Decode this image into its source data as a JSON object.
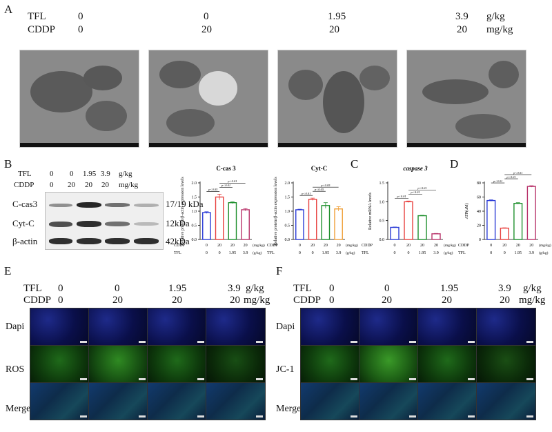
{
  "panelA": {
    "label": "A",
    "rows": [
      {
        "name": "TFL",
        "values": [
          "0",
          "0",
          "1.95",
          "3.9"
        ],
        "unit": "g/kg"
      },
      {
        "name": "CDDP",
        "values": [
          "0",
          "20",
          "20",
          "20"
        ],
        "unit": "mg/kg"
      }
    ]
  },
  "panelB": {
    "label": "B",
    "rows": [
      {
        "name": "TFL",
        "values": [
          "0",
          "0",
          "1.95",
          "3.9"
        ],
        "unit": "g/kg"
      },
      {
        "name": "CDDP",
        "values": [
          "0",
          "20",
          "20",
          "20"
        ],
        "unit": "mg/kg"
      }
    ],
    "bands": [
      {
        "name": "C-cas3",
        "size": "17/19 kDa"
      },
      {
        "name": "Cyt-C",
        "size": "12kDa"
      },
      {
        "name": "β-actin",
        "size": "42kDa"
      }
    ]
  },
  "panelC": {
    "label": "C"
  },
  "panelD": {
    "label": "D"
  },
  "panelE": {
    "label": "E",
    "rows": [
      {
        "name": "TFL",
        "values": [
          "0",
          "0",
          "1.95",
          "3.9"
        ],
        "unit": "g/kg"
      },
      {
        "name": "CDDP",
        "values": [
          "0",
          "20",
          "20",
          "20"
        ],
        "unit": "mg/kg"
      }
    ],
    "stains": [
      "Dapi",
      "ROS",
      "Merge"
    ]
  },
  "panelF": {
    "label": "F",
    "rows": [
      {
        "name": "TFL",
        "values": [
          "0",
          "0",
          "1.95",
          "3.9"
        ],
        "unit": "g/kg"
      },
      {
        "name": "CDDP",
        "values": [
          "0",
          "20",
          "20",
          "20"
        ],
        "unit": "mg/kg"
      }
    ],
    "stains": [
      "Dapi",
      "JC-1",
      "Merge"
    ]
  },
  "chart_data": [
    {
      "type": "bar",
      "title": "C-cas 3",
      "ylabel": "Relative protein/β-actin expression levels",
      "ylim": [
        0,
        2.0
      ],
      "yticks": [
        "0.0",
        "0.5",
        "1.0",
        "1.5",
        "2.0"
      ],
      "categories": [
        "0/0",
        "20/0",
        "20/1.95",
        "20/3.9"
      ],
      "cddp": [
        "0",
        "20",
        "20",
        "20"
      ],
      "tfl": [
        "0",
        "0",
        "1.95",
        "3.9"
      ],
      "cddp_unit": "(mg/kg)",
      "tfl_unit": "(g/kg)",
      "values": [
        0.95,
        1.5,
        1.3,
        1.05
      ],
      "errors": [
        0.03,
        0.1,
        0.03,
        0.04
      ],
      "colors": [
        "#2a3bd6",
        "#e8413f",
        "#1d8f2c",
        "#b8336a"
      ],
      "sig": [
        "p<0.05",
        "p<0.01",
        "p<0.01"
      ]
    },
    {
      "type": "bar",
      "title": "Cyt-C",
      "ylabel": "Relative protein/β-actin expression levels",
      "ylim": [
        0,
        2.0
      ],
      "yticks": [
        "0.0",
        "0.5",
        "1.0",
        "1.5",
        "2.0"
      ],
      "categories": [
        "0/0",
        "20/0",
        "20/1.95",
        "20/3.9"
      ],
      "cddp": [
        "0",
        "20",
        "20",
        "20"
      ],
      "tfl": [
        "0",
        "0",
        "1.95",
        "3.9"
      ],
      "cddp_unit": "(mg/kg)",
      "tfl_unit": "(g/kg)",
      "values": [
        1.05,
        1.42,
        1.2,
        1.08
      ],
      "errors": [
        0.02,
        0.04,
        0.1,
        0.08
      ],
      "colors": [
        "#2a3bd6",
        "#e8413f",
        "#1d8f2c",
        "#f0a038"
      ],
      "sig": [
        "p<0.01",
        "p<0.05",
        "p<0.05"
      ]
    },
    {
      "type": "bar",
      "title": "caspase 3",
      "ylabel": "Relative mRNA levels",
      "ylim": [
        0,
        1.5
      ],
      "yticks": [
        "0.0",
        "0.5",
        "1.0",
        "1.5"
      ],
      "categories": [
        "0/0",
        "20/0",
        "20/1.95",
        "20/3.9"
      ],
      "cddp": [
        "0",
        "20",
        "20",
        "20"
      ],
      "tfl": [
        "0",
        "0",
        "1.95",
        "3.9"
      ],
      "cddp_unit": "(mg/kg)",
      "tfl_unit": "(g/kg)",
      "values": [
        0.32,
        1.0,
        0.63,
        0.15
      ],
      "errors": [
        0.01,
        0.02,
        0.01,
        0.01
      ],
      "colors": [
        "#2a3bd6",
        "#e8413f",
        "#1d8f2c",
        "#b8336a"
      ],
      "sig": [
        "p<0.01",
        "p<0.01",
        "p<0.01"
      ]
    },
    {
      "type": "bar",
      "title": "",
      "ylabel": "ATP(uM)",
      "ylim": [
        0,
        80
      ],
      "yticks": [
        "0",
        "20",
        "40",
        "60",
        "80"
      ],
      "categories": [
        "0/0",
        "20/0",
        "20/1.95",
        "20/3.9"
      ],
      "cddp": [
        "0",
        "20",
        "20",
        "20"
      ],
      "tfl": [
        "0",
        "0",
        "1.95",
        "3.9"
      ],
      "cddp_unit": "(mg/kg)",
      "tfl_unit": "(g/kg)",
      "values": [
        55,
        16,
        51,
        75
      ],
      "errors": [
        1,
        0.5,
        1,
        1
      ],
      "colors": [
        "#2a3bd6",
        "#e8413f",
        "#1d8f2c",
        "#b8336a"
      ],
      "sig": [
        "p<0.01",
        "p<0.01",
        "p<0.01"
      ]
    }
  ]
}
